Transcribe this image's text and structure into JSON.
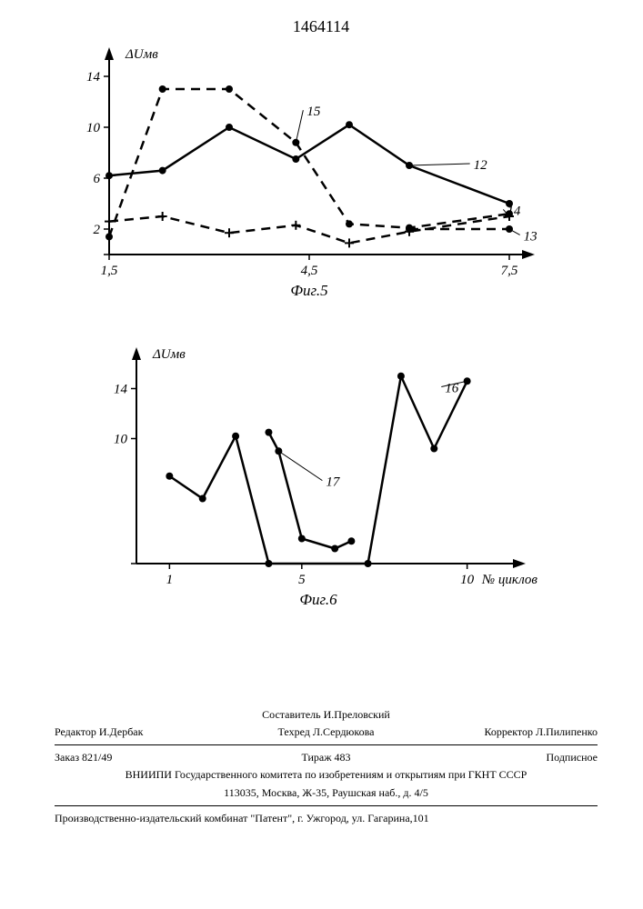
{
  "patent_number": "1464114",
  "fig5": {
    "title": "Фиг.5",
    "y_label": "ΔUмв",
    "y_ticks": [
      0,
      2,
      6,
      10,
      14
    ],
    "x_ticks": [
      1.5,
      4.5,
      7.5
    ],
    "xlim": [
      1.5,
      7.5
    ],
    "ylim": [
      0,
      15
    ],
    "series": [
      {
        "id": "15",
        "label_pos": [
          4.3,
          11.2
        ],
        "marker": "dot",
        "dashed": true,
        "points": [
          [
            1.5,
            1.4
          ],
          [
            2.3,
            13
          ],
          [
            3.3,
            13
          ],
          [
            4.3,
            8.8
          ],
          [
            5.1,
            2.4
          ],
          [
            6.0,
            2.1
          ],
          [
            7.5,
            3.2
          ]
        ]
      },
      {
        "id": "12",
        "label_pos": [
          6.8,
          7.0
        ],
        "marker": "dot",
        "dashed": false,
        "points": [
          [
            1.5,
            6.2
          ],
          [
            2.3,
            6.6
          ],
          [
            3.3,
            10.0
          ],
          [
            4.3,
            7.5
          ],
          [
            5.1,
            10.2
          ],
          [
            6.0,
            7.0
          ],
          [
            7.5,
            4.0
          ]
        ]
      },
      {
        "id": "14",
        "label_pos": [
          7.3,
          3.4
        ],
        "marker": "plus",
        "dashed": true,
        "points": [
          [
            1.5,
            2.6
          ],
          [
            2.3,
            3.0
          ],
          [
            3.3,
            1.7
          ],
          [
            4.3,
            2.3
          ],
          [
            5.1,
            0.9
          ],
          [
            6.0,
            1.8
          ],
          [
            7.5,
            3.0
          ]
        ]
      },
      {
        "id": "13",
        "label_pos": [
          7.55,
          1.4
        ],
        "marker": "dot",
        "dashed": true,
        "points": [
          [
            6.0,
            2.0
          ],
          [
            7.5,
            2.0
          ]
        ]
      }
    ]
  },
  "fig6": {
    "title": "Фиг.6",
    "y_label": "ΔUмв",
    "x_label": "№ циклов",
    "y_ticks": [
      0,
      10,
      14
    ],
    "x_ticks": [
      1,
      5,
      10
    ],
    "xlim": [
      0,
      11
    ],
    "ylim": [
      0,
      16
    ],
    "series": [
      {
        "id": "16",
        "label_pos": [
          9.0,
          14.0
        ],
        "marker": "dot",
        "dashed": false,
        "points": [
          [
            1,
            7.0
          ],
          [
            2,
            5.2
          ],
          [
            3,
            10.2
          ],
          [
            4,
            0
          ],
          [
            7,
            0
          ],
          [
            8,
            15
          ],
          [
            9,
            9.2
          ],
          [
            10,
            14.6
          ]
        ]
      },
      {
        "id": "17",
        "label_pos": [
          5.4,
          6.5
        ],
        "marker": "dot",
        "dashed": false,
        "points": [
          [
            4,
            10.5
          ],
          [
            4.3,
            9.0
          ],
          [
            5,
            2.0
          ],
          [
            6,
            1.2
          ],
          [
            6.5,
            1.8
          ]
        ]
      }
    ]
  },
  "footer": {
    "compiler": "Составитель И.Преловский",
    "editor": "Редактор И.Дербак",
    "tech": "Техред Л.Сердюкова",
    "corrector": "Корректор Л.Пилипенко",
    "order": "Заказ 821/49",
    "circulation": "Тираж 483",
    "subscription": "Подписное",
    "org": "ВНИИПИ Государственного комитета по изобретениям и открытиям при ГКНТ СССР",
    "address": "113035, Москва, Ж-35, Раушская наб., д. 4/5",
    "printer": "Производственно-издательский комбинат \"Патент\", г. Ужгород, ул. Гагарина,101"
  }
}
